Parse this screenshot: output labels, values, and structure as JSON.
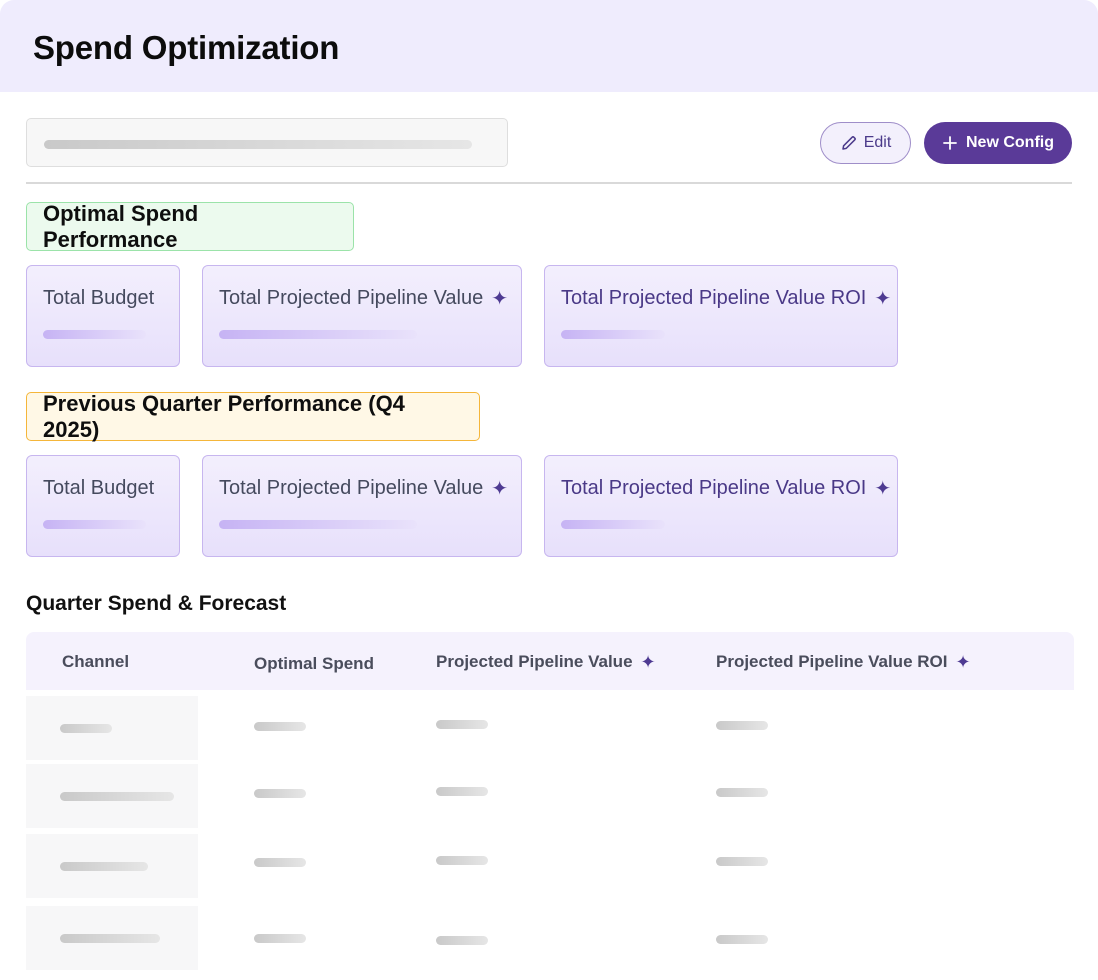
{
  "header": {
    "title": "Spend Optimization"
  },
  "toolbar": {
    "edit_label": "Edit",
    "new_config_label": "New Config",
    "edit_icon": "pencil-icon",
    "new_icon": "plus-icon"
  },
  "sections": {
    "optimal": {
      "title": "Optimal Spend Performance",
      "cards": [
        {
          "label": "Total Budget"
        },
        {
          "label": "Total Projected Pipeline Value"
        },
        {
          "label": "Total Projected Pipeline Value ROI"
        }
      ]
    },
    "previous": {
      "title": "Previous Quarter Performance (Q4 2025)",
      "cards": [
        {
          "label": "Total Budget"
        },
        {
          "label": "Total Projected Pipeline Value"
        },
        {
          "label": "Total Projected Pipeline Value ROI"
        }
      ]
    }
  },
  "table": {
    "title": "Quarter Spend & Forecast",
    "columns": [
      "Channel",
      "Optimal Spend",
      "Projected Pipeline Value",
      "Projected Pipeline Value ROI"
    ]
  },
  "colors": {
    "header_bg": "#efecfd",
    "accent": "#5a3a98",
    "green_badge": "#ecfaee",
    "orange_badge": "#fff8e6"
  }
}
